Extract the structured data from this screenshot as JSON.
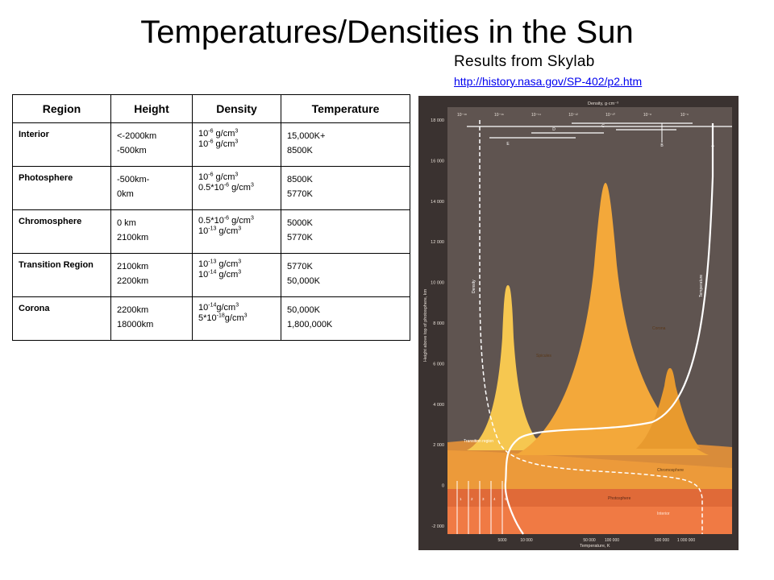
{
  "slide": {
    "title": "Temperatures/Densities in the Sun",
    "subtitle": "Results from Skylab",
    "link": "http://history.nasa.gov/SP-402/p2.htm"
  },
  "table": {
    "headers": [
      "Region",
      "Height",
      "Density",
      "Temperature"
    ],
    "rows": [
      {
        "region": "Interior",
        "height": [
          "<-2000km",
          "-500km"
        ],
        "density": [
          {
            "pre": "10",
            "exp": "-6",
            "post": " g/cm",
            "unit_exp": "3"
          },
          {
            "pre": "10",
            "exp": "-6",
            "post": " g/cm",
            "unit_exp": "3"
          }
        ],
        "temperature": [
          "15,000K+",
          "8500K"
        ]
      },
      {
        "region": "Photosphere",
        "height": [
          "-500km-",
          "0km"
        ],
        "density": [
          {
            "pre": "10",
            "exp": "-6",
            "post": " g/cm",
            "unit_exp": "3"
          },
          {
            "pre": "0.5*10",
            "exp": "-6",
            "post": " g/cm",
            "unit_exp": "3"
          }
        ],
        "temperature": [
          "8500K",
          "5770K"
        ]
      },
      {
        "region": "Chromosphere",
        "height": [
          "0 km",
          "2100km"
        ],
        "density": [
          {
            "pre": "0.5*10",
            "exp": "-6",
            "post": " g/cm",
            "unit_exp": "3"
          },
          {
            "pre": "10",
            "exp": "-13",
            "post": " g/cm",
            "unit_exp": "3"
          }
        ],
        "temperature": [
          "5000K",
          "5770K"
        ]
      },
      {
        "region": "Transition Region",
        "height": [
          "2100km",
          "2200km"
        ],
        "density": [
          {
            "pre": "10",
            "exp": "-13",
            "post": " g/cm",
            "unit_exp": "3"
          },
          {
            "pre": "10",
            "exp": "-14",
            "post": " g/cm",
            "unit_exp": "3"
          }
        ],
        "temperature": [
          "5770K",
          "50,000K"
        ]
      },
      {
        "region": "Corona",
        "height": [
          "2200km",
          "18000km"
        ],
        "density": [
          {
            "pre": "10",
            "exp": "-14",
            "post": "g/cm",
            "unit_exp": "3"
          },
          {
            "pre": "5*10",
            "exp": "-18",
            "post": "g/cm",
            "unit_exp": "3"
          }
        ],
        "temperature": [
          "50,000K",
          "1,800,000K"
        ]
      }
    ]
  },
  "figure": {
    "top_axis_title": "Density, g·cm⁻³",
    "top_ticks": [
      "10⁻¹⁸",
      "10⁻¹⁶",
      "10⁻¹⁴",
      "10⁻¹²",
      "10⁻¹⁰",
      "10⁻⁸",
      "10⁻⁶"
    ],
    "y_axis_title": "Height above top of photosphere, km",
    "y_ticks": [
      "18 000",
      "16 000",
      "14 000",
      "12 000",
      "10 000",
      "8 000",
      "6 000",
      "4 000",
      "2 000",
      "0",
      "-2 000"
    ],
    "bottom_axis_title": "Temperature, K",
    "bottom_ticks": [
      "5000",
      "10 000",
      "50 000",
      "100 000",
      "500 000",
      "1 000 000"
    ],
    "letters": [
      "E",
      "D",
      "C",
      "B",
      "A"
    ],
    "labels": {
      "density": "Density",
      "temperature": "Temperature",
      "spicules": "Spicules",
      "corona": "Corona",
      "transition": "Transition region",
      "chromosphere": "Chromosphere",
      "photosphere": "Photosphere",
      "interior": "Interior"
    },
    "bottom_numbers": [
      "1",
      "2",
      "3",
      "4",
      "5"
    ],
    "colors": {
      "background": "#5f5450",
      "frame": "#3a3230",
      "peak_light": "#f4c74a",
      "peak_main": "#f3a83a",
      "peak_mid": "#e89a2e",
      "chromosphere": "#ec9a3a",
      "photosphere": "#e06a38",
      "interior": "#f07a44"
    }
  }
}
